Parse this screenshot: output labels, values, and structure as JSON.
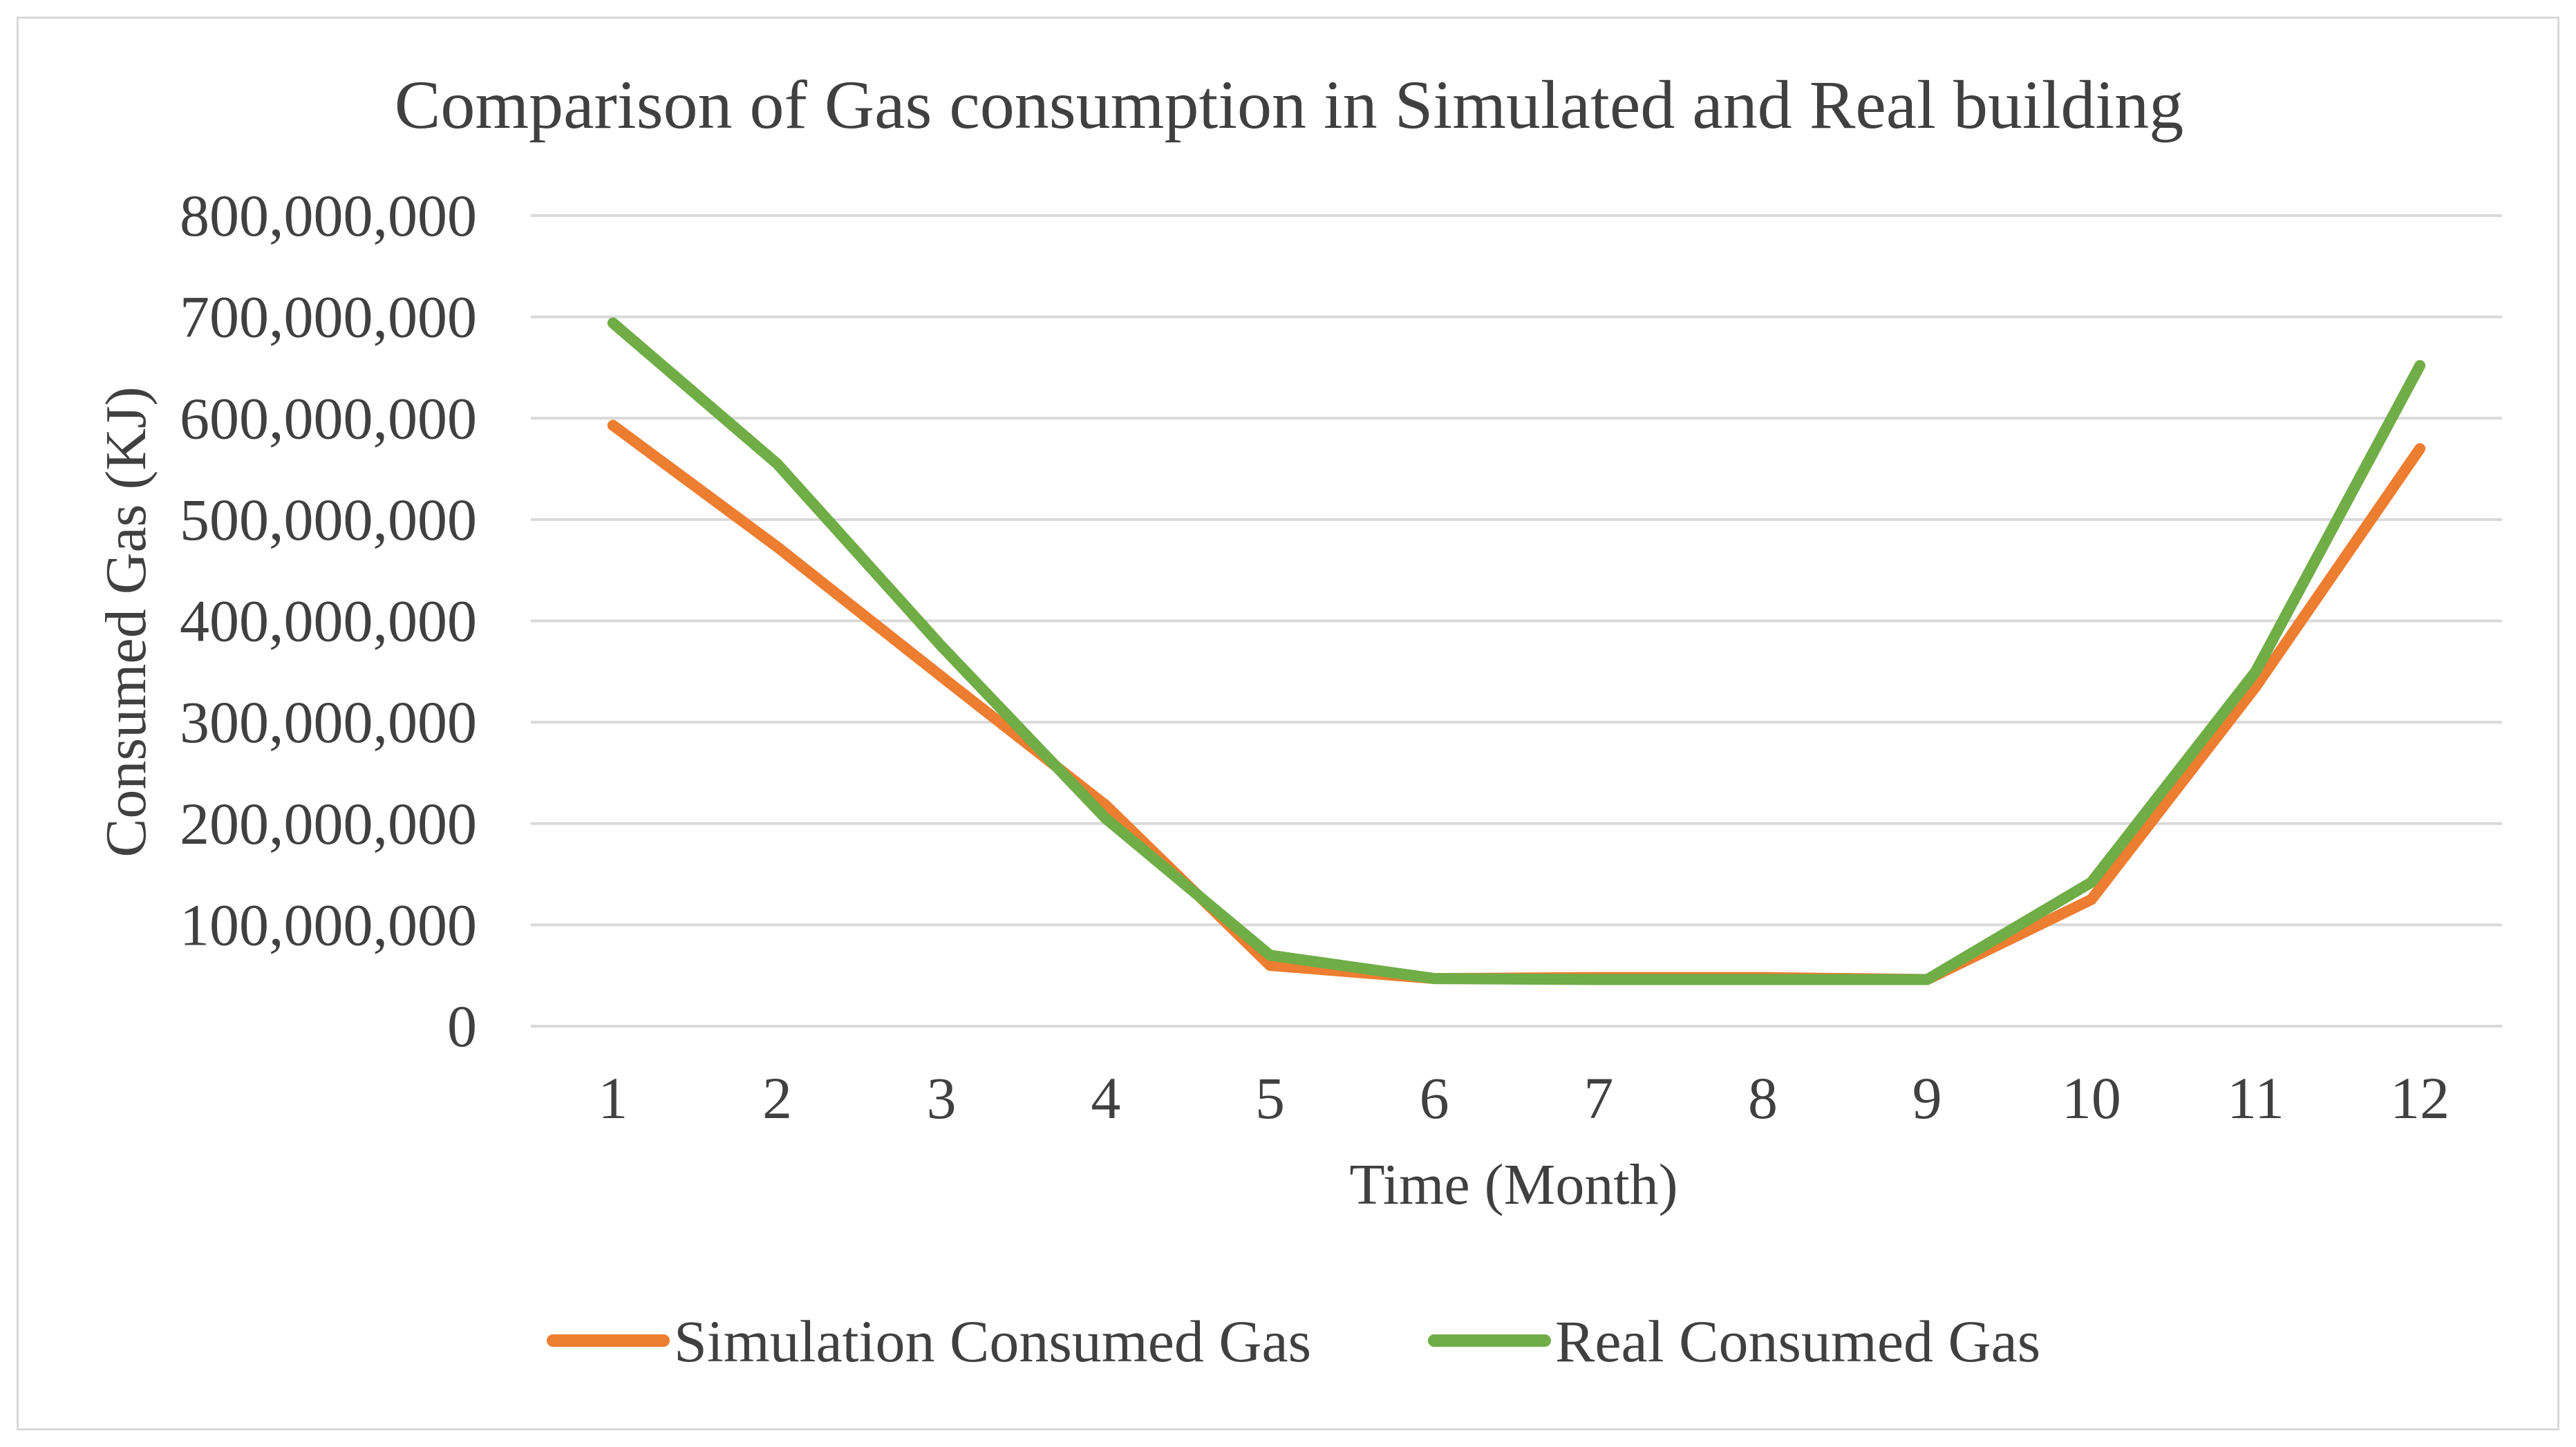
{
  "chart_data": {
    "type": "line",
    "title": "Comparison of Gas consumption in Simulated and Real building",
    "xlabel": "Time (Month)",
    "ylabel": "Consumed Gas (KJ)",
    "x": [
      1,
      2,
      3,
      4,
      5,
      6,
      7,
      8,
      9,
      10,
      11,
      12
    ],
    "x_tick_labels": [
      "1",
      "2",
      "3",
      "4",
      "5",
      "6",
      "7",
      "8",
      "9",
      "10",
      "11",
      "12"
    ],
    "ylim": [
      0,
      800000000
    ],
    "y_ticks": [
      0,
      100000000,
      200000000,
      300000000,
      400000000,
      500000000,
      600000000,
      700000000,
      800000000
    ],
    "y_tick_labels": [
      "0",
      "100,000,000",
      "200,000,000",
      "300,000,000",
      "400,000,000",
      "500,000,000",
      "600,000,000",
      "700,000,000",
      "800,000,000"
    ],
    "grid": true,
    "legend_position": "bottom",
    "series": [
      {
        "name": "Simulation Consumed Gas",
        "color": "#ED7D31",
        "values": [
          593000000,
          473000000,
          345000000,
          218000000,
          60000000,
          47000000,
          48000000,
          48000000,
          46000000,
          125000000,
          335000000,
          570000000
        ]
      },
      {
        "name": "Real Consumed Gas",
        "color": "#70AD47",
        "values": [
          694000000,
          555000000,
          375000000,
          205000000,
          70000000,
          47000000,
          46000000,
          46000000,
          46000000,
          142000000,
          350000000,
          652000000
        ]
      }
    ],
    "colors": {
      "gridline": "#d9d9d9",
      "text": "#404040",
      "frame": "#d9d9d9"
    }
  }
}
